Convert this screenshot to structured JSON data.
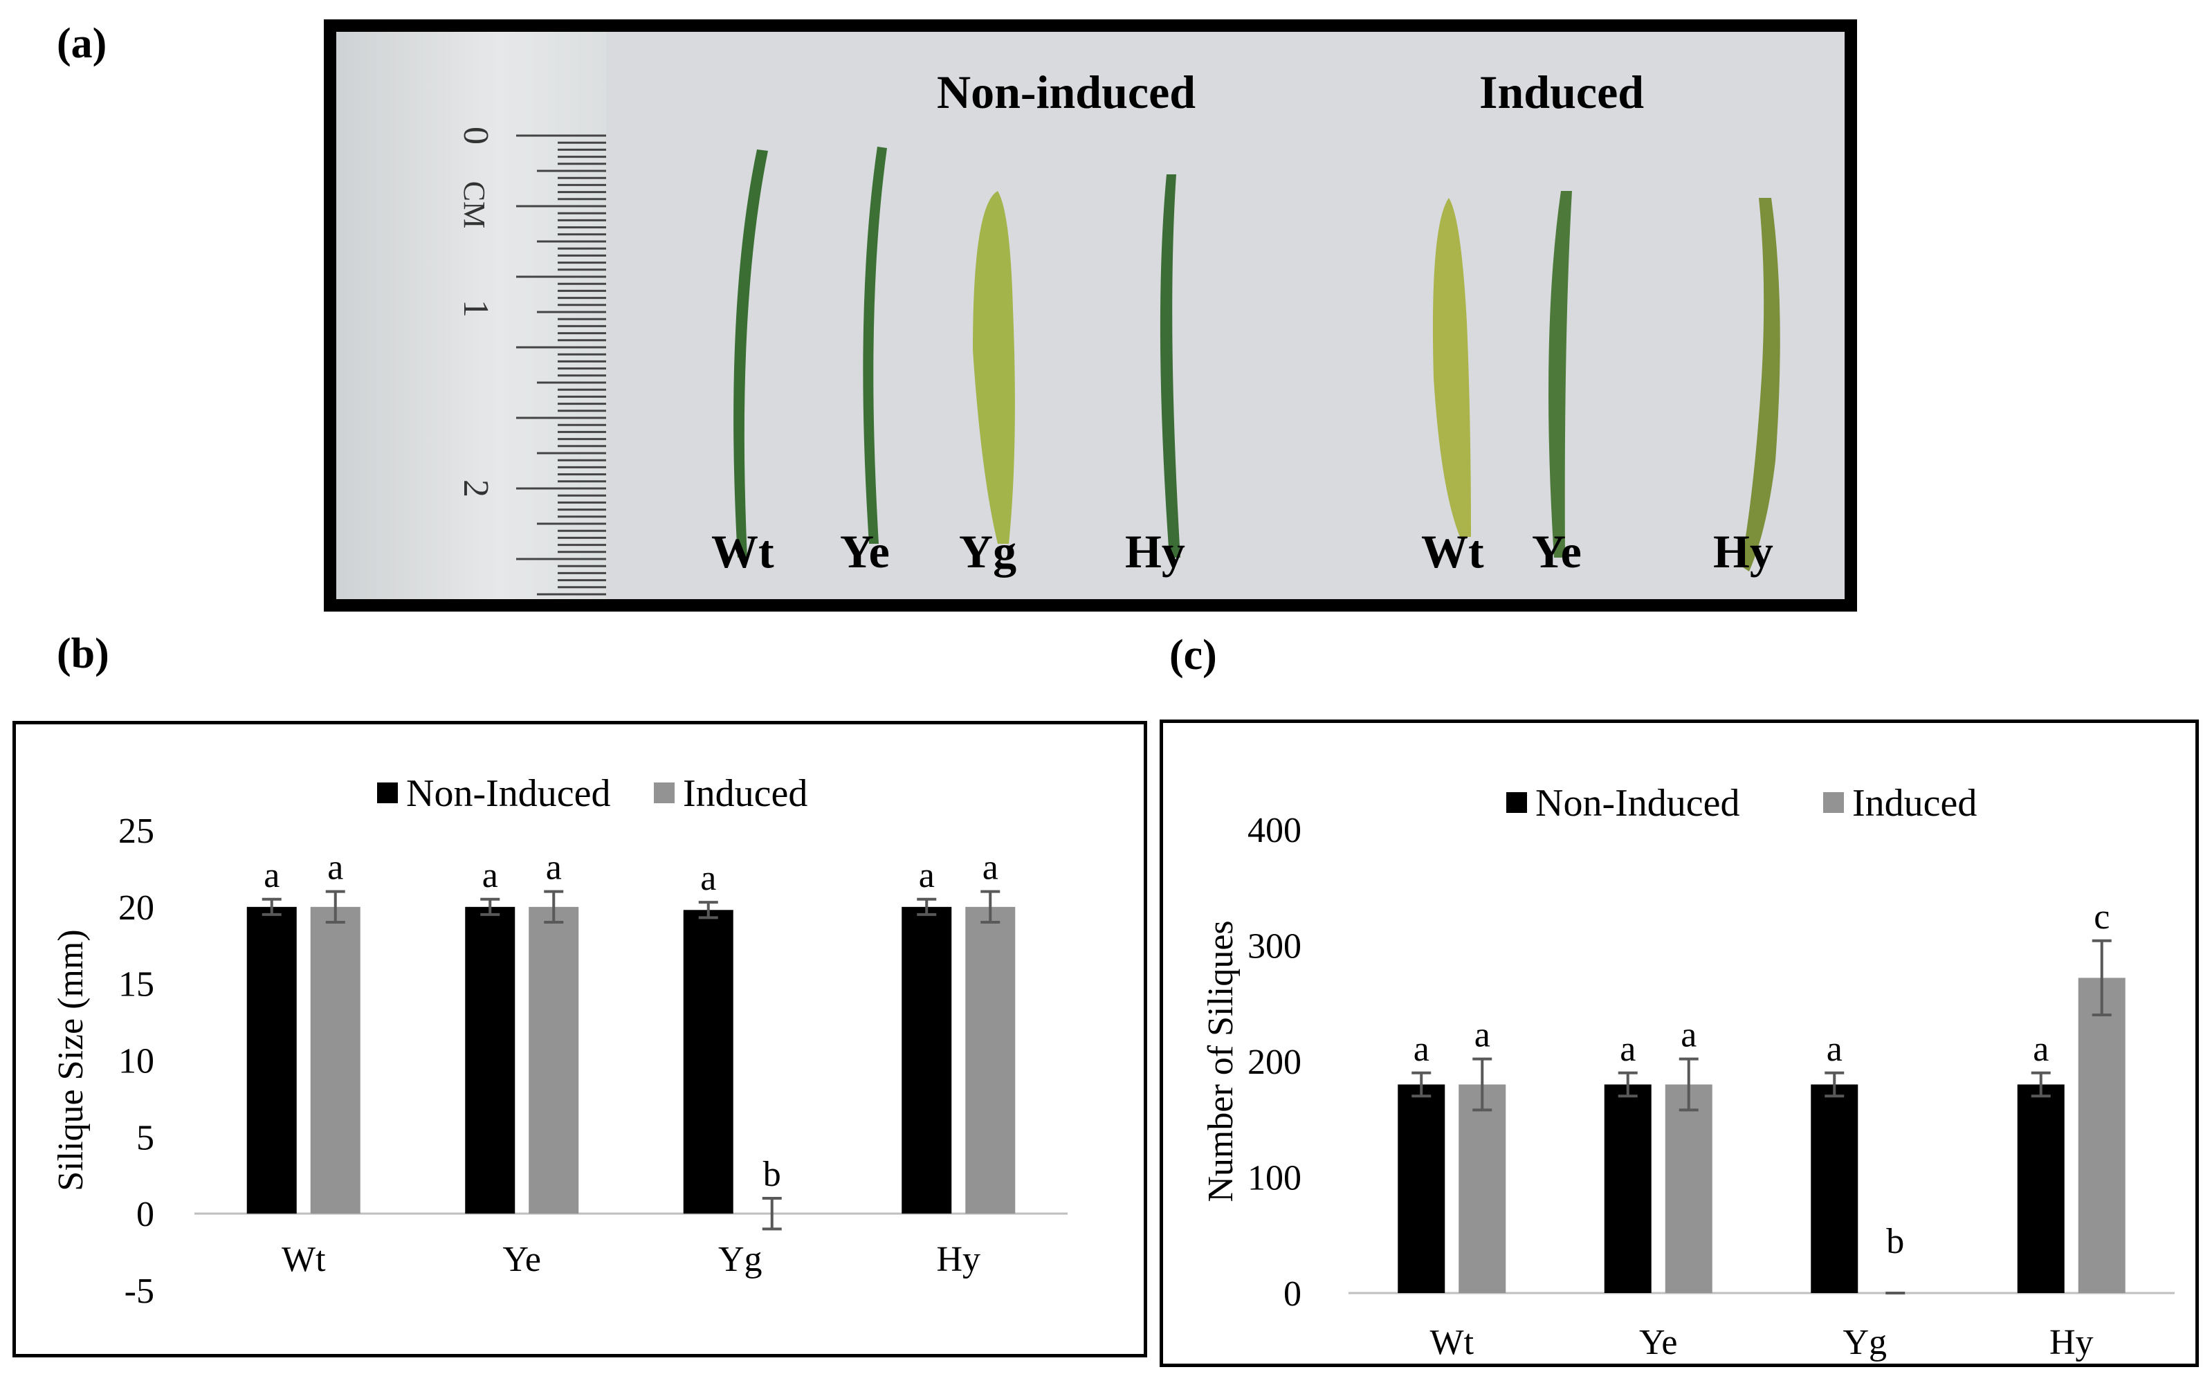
{
  "panels": {
    "a": "(a)",
    "b": "(b)",
    "c": "(c)"
  },
  "photo": {
    "heading_left": "Non-induced",
    "heading_right": "Induced",
    "ruler_marks": [
      "0",
      "CM",
      "1",
      "2"
    ],
    "labels_left": [
      "Wt",
      "Ye",
      "Yg",
      "Hy"
    ],
    "labels_right": [
      "Wt",
      "Ye",
      "Hy"
    ]
  },
  "colors": {
    "non_induced": "#000000",
    "induced": "#939393",
    "error": "#595959",
    "axis": "#bfbfbf"
  },
  "chart_data": [
    {
      "type": "bar",
      "categories": [
        "Wt",
        "Ye",
        "Yg",
        "Hy"
      ],
      "series": [
        {
          "name": "Non-Induced",
          "values": [
            20,
            20,
            19.8,
            20
          ],
          "errors": [
            0.5,
            0.5,
            0.5,
            0.5
          ],
          "letters": [
            "a",
            "a",
            "a",
            "a"
          ]
        },
        {
          "name": "Induced",
          "values": [
            20,
            20,
            0,
            20
          ],
          "errors": [
            1,
            1,
            1,
            1
          ],
          "letters": [
            "a",
            "a",
            "b",
            "a"
          ]
        }
      ],
      "ylabel": "Silique Size (mm)",
      "xlabel": "",
      "ylim": [
        -5,
        25
      ],
      "yticks": [
        -5,
        0,
        5,
        10,
        15,
        20,
        25
      ],
      "legend": "top"
    },
    {
      "type": "bar",
      "categories": [
        "Wt",
        "Ye",
        "Yg",
        "Hy"
      ],
      "series": [
        {
          "name": "Non-Induced",
          "values": [
            180,
            180,
            180,
            180
          ],
          "errors": [
            10,
            10,
            10,
            10
          ],
          "letters": [
            "a",
            "a",
            "a",
            "a"
          ]
        },
        {
          "name": "Induced",
          "values": [
            180,
            180,
            0,
            272
          ],
          "errors": [
            22,
            22,
            0,
            32
          ],
          "letters": [
            "a",
            "a",
            "b",
            "c"
          ]
        }
      ],
      "ylabel": "Number of Siliques",
      "xlabel": "",
      "ylim": [
        0,
        400
      ],
      "yticks": [
        0,
        100,
        200,
        300,
        400
      ],
      "legend": "top"
    }
  ]
}
